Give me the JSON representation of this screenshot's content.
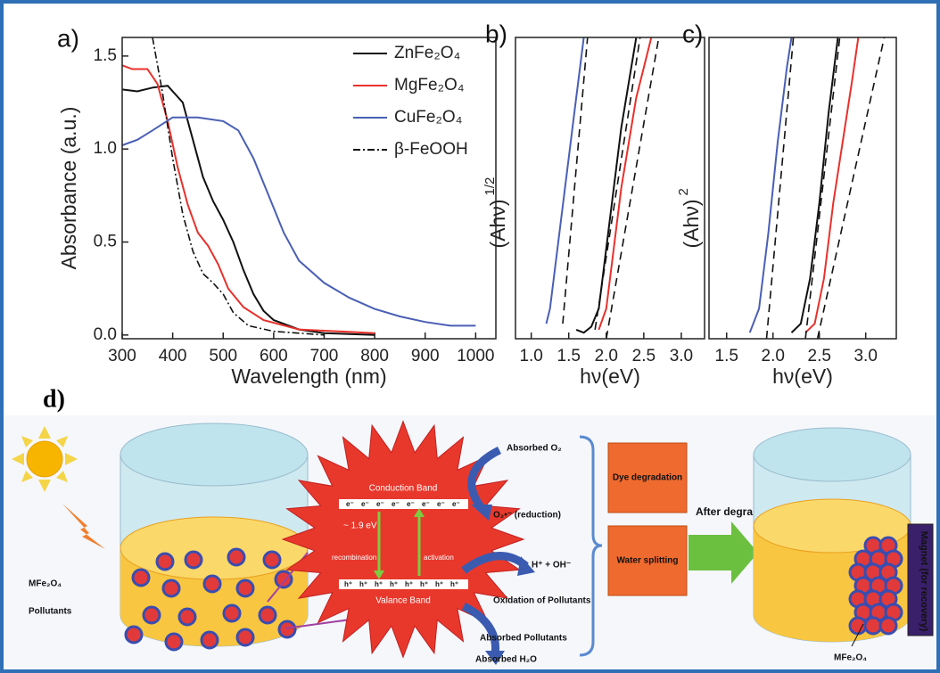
{
  "chart_data": [
    {
      "type": "line",
      "panel_label": "a)",
      "x_label": "Wavelength (nm)",
      "y_label": "Absorbance (a.u.)",
      "xlim": [
        300,
        1040
      ],
      "ylim": [
        -0.02,
        1.6
      ],
      "xticks": [
        300,
        400,
        500,
        600,
        700,
        800,
        900,
        1000
      ],
      "yticks": [
        {
          "value": 0,
          "label": "0.0"
        },
        0.5,
        {
          "value": 1,
          "label": "1.0"
        },
        1.5
      ],
      "legend": "upper right",
      "series": [
        {
          "name": "ZnFe₂O₄",
          "color": "#111111",
          "style": "solid",
          "x": [
            300,
            330,
            360,
            390,
            420,
            440,
            460,
            480,
            500,
            520,
            540,
            560,
            580,
            600,
            650,
            700,
            800
          ],
          "values": [
            1.32,
            1.31,
            1.33,
            1.34,
            1.25,
            1.05,
            0.85,
            0.72,
            0.62,
            0.5,
            0.35,
            0.22,
            0.13,
            0.08,
            0.03,
            0.01,
            0
          ]
        },
        {
          "name": "MgFe₂O₄",
          "color": "#e8312c",
          "style": "solid",
          "x": [
            300,
            320,
            350,
            370,
            390,
            410,
            430,
            450,
            470,
            490,
            510,
            540,
            580,
            650,
            800
          ],
          "values": [
            1.45,
            1.43,
            1.43,
            1.35,
            1.15,
            0.9,
            0.7,
            0.55,
            0.48,
            0.38,
            0.25,
            0.15,
            0.08,
            0.03,
            0.01
          ]
        },
        {
          "name": "CuFe₂O₄",
          "color": "#4a5fb5",
          "style": "solid",
          "x": [
            300,
            330,
            360,
            400,
            450,
            500,
            530,
            560,
            590,
            620,
            650,
            700,
            750,
            800,
            850,
            900,
            950,
            1000
          ],
          "values": [
            1.02,
            1.05,
            1.1,
            1.17,
            1.17,
            1.15,
            1.1,
            0.95,
            0.75,
            0.55,
            0.4,
            0.28,
            0.2,
            0.14,
            0.1,
            0.07,
            0.05,
            0.05
          ]
        },
        {
          "name": "β-FeOOH",
          "color": "#111111",
          "style": "dashdot",
          "x": [
            360,
            380,
            400,
            420,
            440,
            460,
            480,
            500,
            520,
            550,
            600,
            700
          ],
          "values": [
            1.6,
            1.3,
            0.95,
            0.65,
            0.45,
            0.33,
            0.28,
            0.22,
            0.12,
            0.05,
            0.02,
            0
          ]
        }
      ]
    },
    {
      "type": "line",
      "panel_label": "b)",
      "x_label": "hν(eV)",
      "y_label": "(Ahν)",
      "y_label_exponent": "1/2",
      "xlim": [
        0.79,
        3.31
      ],
      "ylim": [
        0,
        1
      ],
      "xticks": [
        {
          "value": 1,
          "label": "1.0"
        },
        1.5,
        {
          "value": 2,
          "label": "2.0"
        },
        2.5,
        {
          "value": 3,
          "label": "3.0"
        }
      ],
      "series": [
        {
          "color": "#4a5fb5",
          "style": "solid",
          "x": [
            1.2,
            1.25,
            1.3,
            1.4,
            1.5,
            1.6,
            1.7
          ],
          "values": [
            0.05,
            0.1,
            0.2,
            0.4,
            0.6,
            0.8,
            1
          ]
        },
        {
          "color": "#111111",
          "style": "solid",
          "x": [
            1.6,
            1.7,
            1.8,
            1.9,
            2.0,
            2.1,
            2.2,
            2.3,
            2.4
          ],
          "values": [
            0.03,
            0.02,
            0.04,
            0.1,
            0.3,
            0.5,
            0.7,
            0.85,
            1
          ]
        },
        {
          "color": "#e8312c",
          "style": "solid",
          "x": [
            1.9,
            2.0,
            2.1,
            2.2,
            2.3,
            2.4,
            2.5,
            2.6
          ],
          "values": [
            0.03,
            0.1,
            0.3,
            0.5,
            0.65,
            0.8,
            0.9,
            1
          ]
        },
        {
          "color": "#111111",
          "style": "dashed",
          "x": [
            1.42,
            1.75
          ],
          "values": [
            0.05,
            1
          ]
        },
        {
          "color": "#111111",
          "style": "dashed",
          "x": [
            1.85,
            2.45
          ],
          "values": [
            0.03,
            1
          ]
        },
        {
          "color": "#111111",
          "style": "dashed",
          "x": [
            2.0,
            2.7
          ],
          "values": [
            0,
            1
          ]
        }
      ]
    },
    {
      "type": "line",
      "panel_label": "c)",
      "x_label": "hν(eV)",
      "y_label": "(Ahν)",
      "y_label_exponent": "2",
      "xlim": [
        1.31,
        3.33
      ],
      "ylim": [
        0,
        1
      ],
      "xticks": [
        1.5,
        {
          "value": 2,
          "label": "2.0"
        },
        2.5,
        {
          "value": 3,
          "label": "3.0"
        }
      ],
      "series": [
        {
          "color": "#4a5fb5",
          "style": "solid",
          "x": [
            1.75,
            1.85,
            1.95,
            2.05,
            2.15,
            2.2
          ],
          "values": [
            0.02,
            0.1,
            0.35,
            0.65,
            0.9,
            1
          ]
        },
        {
          "color": "#111111",
          "style": "solid",
          "x": [
            2.2,
            2.3,
            2.4,
            2.5,
            2.6,
            2.7
          ],
          "values": [
            0.02,
            0.05,
            0.2,
            0.45,
            0.75,
            1
          ]
        },
        {
          "color": "#e8312c",
          "style": "solid",
          "x": [
            2.35,
            2.45,
            2.55,
            2.65,
            2.75,
            2.85,
            2.92
          ],
          "values": [
            0.02,
            0.05,
            0.2,
            0.45,
            0.65,
            0.85,
            1
          ]
        },
        {
          "color": "#111111",
          "style": "dashed",
          "x": [
            1.93,
            2.22
          ],
          "values": [
            0,
            1
          ]
        },
        {
          "color": "#111111",
          "style": "dashed",
          "x": [
            2.35,
            2.72
          ],
          "values": [
            0,
            1
          ]
        },
        {
          "color": "#111111",
          "style": "dashed",
          "x": [
            2.48,
            3.2
          ],
          "values": [
            0,
            1
          ]
        }
      ]
    }
  ],
  "diagram": {
    "panel_label": "d)",
    "catalyst": "MFe₂O₄",
    "pollutants": "Pollutants",
    "conduction_band": "Conduction Band",
    "valance_band": "Valance Band",
    "gap": "~ 1.9 eV",
    "recombination": "recombination",
    "activation": "activation",
    "electron": "e⁻",
    "hole": "h⁺",
    "absorbed_o2": "Absorbed O₂",
    "superoxide": "O₂•⁻ (reduction)",
    "hydroxyl": "H⁺ + OH⁻",
    "oxidation": "Oxidation of Pollutants",
    "absorbed_pollutants": "Absorbed Pollutants",
    "absorbed_h2o": "Absorbed H₂O",
    "dye": "Dye degradation",
    "water": "Water splitting",
    "after": "After degradation",
    "recovered": "MFe₂O₄",
    "magnet": "Magnet (for recovery)"
  }
}
